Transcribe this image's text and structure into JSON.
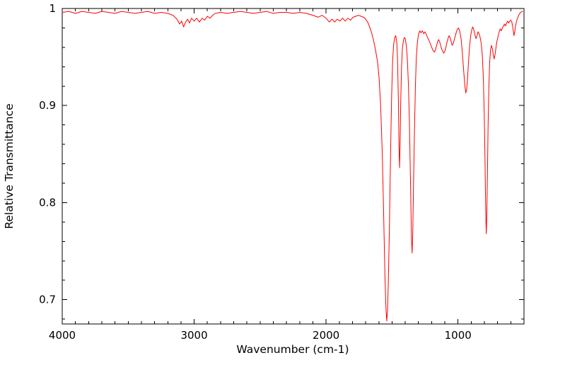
{
  "chart_data": {
    "type": "line",
    "title": "",
    "xlabel": "Wavenumber (cm-1)",
    "ylabel": "Relative Transmittance",
    "grid": false,
    "legend": "none",
    "background_color": "#ffffff",
    "axis_color": "#000000",
    "x_axis": {
      "min": 500,
      "max": 4000,
      "reversed": true,
      "major_ticks": [
        4000,
        3000,
        2000,
        1000
      ],
      "tick_labels": [
        "4000",
        "3000",
        "2000",
        "1000"
      ],
      "minor_tick_step": 100
    },
    "y_axis": {
      "min": 0.675,
      "max": 1.0,
      "major_ticks": [
        0.7,
        0.8,
        0.9,
        1.0
      ],
      "tick_labels": [
        "0.7",
        "0.8",
        "0.9",
        "1"
      ],
      "minor_tick_step": 0.02
    },
    "series": [
      {
        "name": "ir-spectrum",
        "color": "#ff0000",
        "line_width": 1,
        "points": [
          [
            4000,
            0.996
          ],
          [
            3950,
            0.997
          ],
          [
            3900,
            0.995
          ],
          [
            3850,
            0.997
          ],
          [
            3800,
            0.996
          ],
          [
            3750,
            0.995
          ],
          [
            3700,
            0.997
          ],
          [
            3650,
            0.996
          ],
          [
            3600,
            0.995
          ],
          [
            3550,
            0.997
          ],
          [
            3500,
            0.996
          ],
          [
            3450,
            0.995
          ],
          [
            3400,
            0.996
          ],
          [
            3350,
            0.997
          ],
          [
            3300,
            0.995
          ],
          [
            3250,
            0.996
          ],
          [
            3200,
            0.995
          ],
          [
            3160,
            0.993
          ],
          [
            3130,
            0.989
          ],
          [
            3110,
            0.984
          ],
          [
            3095,
            0.987
          ],
          [
            3080,
            0.981
          ],
          [
            3065,
            0.986
          ],
          [
            3050,
            0.989
          ],
          [
            3035,
            0.985
          ],
          [
            3020,
            0.99
          ],
          [
            3000,
            0.987
          ],
          [
            2980,
            0.99
          ],
          [
            2960,
            0.986
          ],
          [
            2940,
            0.99
          ],
          [
            2920,
            0.988
          ],
          [
            2900,
            0.992
          ],
          [
            2880,
            0.99
          ],
          [
            2860,
            0.993
          ],
          [
            2840,
            0.995
          ],
          [
            2800,
            0.996
          ],
          [
            2750,
            0.995
          ],
          [
            2700,
            0.996
          ],
          [
            2650,
            0.997
          ],
          [
            2600,
            0.996
          ],
          [
            2550,
            0.995
          ],
          [
            2500,
            0.996
          ],
          [
            2450,
            0.997
          ],
          [
            2400,
            0.995
          ],
          [
            2350,
            0.996
          ],
          [
            2300,
            0.996
          ],
          [
            2250,
            0.995
          ],
          [
            2200,
            0.996
          ],
          [
            2150,
            0.995
          ],
          [
            2100,
            0.993
          ],
          [
            2060,
            0.991
          ],
          [
            2030,
            0.993
          ],
          [
            2000,
            0.99
          ],
          [
            1975,
            0.986
          ],
          [
            1955,
            0.989
          ],
          [
            1935,
            0.986
          ],
          [
            1915,
            0.989
          ],
          [
            1895,
            0.987
          ],
          [
            1875,
            0.99
          ],
          [
            1855,
            0.987
          ],
          [
            1835,
            0.99
          ],
          [
            1815,
            0.988
          ],
          [
            1795,
            0.991
          ],
          [
            1775,
            0.992
          ],
          [
            1755,
            0.993
          ],
          [
            1735,
            0.992
          ],
          [
            1715,
            0.991
          ],
          [
            1700,
            0.989
          ],
          [
            1685,
            0.986
          ],
          [
            1670,
            0.981
          ],
          [
            1655,
            0.975
          ],
          [
            1640,
            0.967
          ],
          [
            1625,
            0.957
          ],
          [
            1610,
            0.945
          ],
          [
            1598,
            0.928
          ],
          [
            1586,
            0.898
          ],
          [
            1574,
            0.85
          ],
          [
            1564,
            0.79
          ],
          [
            1554,
            0.725
          ],
          [
            1546,
            0.69
          ],
          [
            1540,
            0.678
          ],
          [
            1534,
            0.69
          ],
          [
            1528,
            0.72
          ],
          [
            1520,
            0.775
          ],
          [
            1512,
            0.845
          ],
          [
            1504,
            0.905
          ],
          [
            1496,
            0.945
          ],
          [
            1488,
            0.963
          ],
          [
            1480,
            0.97
          ],
          [
            1472,
            0.972
          ],
          [
            1464,
            0.965
          ],
          [
            1458,
            0.946
          ],
          [
            1452,
            0.905
          ],
          [
            1447,
            0.856
          ],
          [
            1443,
            0.836
          ],
          [
            1439,
            0.86
          ],
          [
            1434,
            0.905
          ],
          [
            1428,
            0.94
          ],
          [
            1422,
            0.958
          ],
          [
            1415,
            0.966
          ],
          [
            1408,
            0.97
          ],
          [
            1400,
            0.969
          ],
          [
            1392,
            0.962
          ],
          [
            1384,
            0.948
          ],
          [
            1376,
            0.922
          ],
          [
            1368,
            0.88
          ],
          [
            1360,
            0.82
          ],
          [
            1353,
            0.765
          ],
          [
            1348,
            0.748
          ],
          [
            1343,
            0.77
          ],
          [
            1337,
            0.82
          ],
          [
            1330,
            0.875
          ],
          [
            1323,
            0.92
          ],
          [
            1316,
            0.95
          ],
          [
            1308,
            0.965
          ],
          [
            1300,
            0.973
          ],
          [
            1290,
            0.977
          ],
          [
            1280,
            0.975
          ],
          [
            1270,
            0.977
          ],
          [
            1260,
            0.974
          ],
          [
            1250,
            0.976
          ],
          [
            1240,
            0.973
          ],
          [
            1230,
            0.97
          ],
          [
            1220,
            0.967
          ],
          [
            1210,
            0.964
          ],
          [
            1200,
            0.96
          ],
          [
            1190,
            0.957
          ],
          [
            1180,
            0.955
          ],
          [
            1172,
            0.957
          ],
          [
            1164,
            0.961
          ],
          [
            1156,
            0.965
          ],
          [
            1148,
            0.968
          ],
          [
            1140,
            0.966
          ],
          [
            1132,
            0.962
          ],
          [
            1124,
            0.958
          ],
          [
            1116,
            0.956
          ],
          [
            1108,
            0.954
          ],
          [
            1100,
            0.956
          ],
          [
            1092,
            0.96
          ],
          [
            1084,
            0.965
          ],
          [
            1076,
            0.969
          ],
          [
            1068,
            0.972
          ],
          [
            1060,
            0.97
          ],
          [
            1052,
            0.966
          ],
          [
            1044,
            0.962
          ],
          [
            1036,
            0.964
          ],
          [
            1028,
            0.968
          ],
          [
            1020,
            0.972
          ],
          [
            1012,
            0.976
          ],
          [
            1004,
            0.979
          ],
          [
            996,
            0.98
          ],
          [
            986,
            0.976
          ],
          [
            976,
            0.968
          ],
          [
            966,
            0.952
          ],
          [
            956,
            0.934
          ],
          [
            948,
            0.92
          ],
          [
            941,
            0.913
          ],
          [
            935,
            0.916
          ],
          [
            928,
            0.928
          ],
          [
            920,
            0.946
          ],
          [
            912,
            0.962
          ],
          [
            904,
            0.972
          ],
          [
            896,
            0.978
          ],
          [
            888,
            0.981
          ],
          [
            880,
            0.978
          ],
          [
            872,
            0.973
          ],
          [
            864,
            0.969
          ],
          [
            856,
            0.972
          ],
          [
            848,
            0.976
          ],
          [
            840,
            0.974
          ],
          [
            832,
            0.97
          ],
          [
            824,
            0.964
          ],
          [
            816,
            0.952
          ],
          [
            808,
            0.928
          ],
          [
            801,
            0.89
          ],
          [
            795,
            0.84
          ],
          [
            790,
            0.79
          ],
          [
            786,
            0.768
          ],
          [
            782,
            0.785
          ],
          [
            777,
            0.83
          ],
          [
            772,
            0.88
          ],
          [
            766,
            0.92
          ],
          [
            760,
            0.945
          ],
          [
            753,
            0.958
          ],
          [
            746,
            0.962
          ],
          [
            739,
            0.958
          ],
          [
            732,
            0.952
          ],
          [
            726,
            0.948
          ],
          [
            720,
            0.952
          ],
          [
            714,
            0.958
          ],
          [
            708,
            0.964
          ],
          [
            702,
            0.968
          ],
          [
            695,
            0.972
          ],
          [
            688,
            0.976
          ],
          [
            680,
            0.979
          ],
          [
            672,
            0.977
          ],
          [
            664,
            0.98
          ],
          [
            656,
            0.982
          ],
          [
            648,
            0.984
          ],
          [
            640,
            0.982
          ],
          [
            632,
            0.985
          ],
          [
            624,
            0.987
          ],
          [
            616,
            0.985
          ],
          [
            608,
            0.987
          ],
          [
            600,
            0.988
          ],
          [
            592,
            0.986
          ],
          [
            584,
            0.98
          ],
          [
            576,
            0.972
          ],
          [
            570,
            0.976
          ],
          [
            564,
            0.982
          ],
          [
            558,
            0.986
          ],
          [
            552,
            0.989
          ],
          [
            546,
            0.991
          ],
          [
            540,
            0.993
          ],
          [
            532,
            0.995
          ],
          [
            524,
            0.996
          ],
          [
            516,
            0.997
          ],
          [
            510,
            0.997
          ]
        ]
      }
    ]
  }
}
